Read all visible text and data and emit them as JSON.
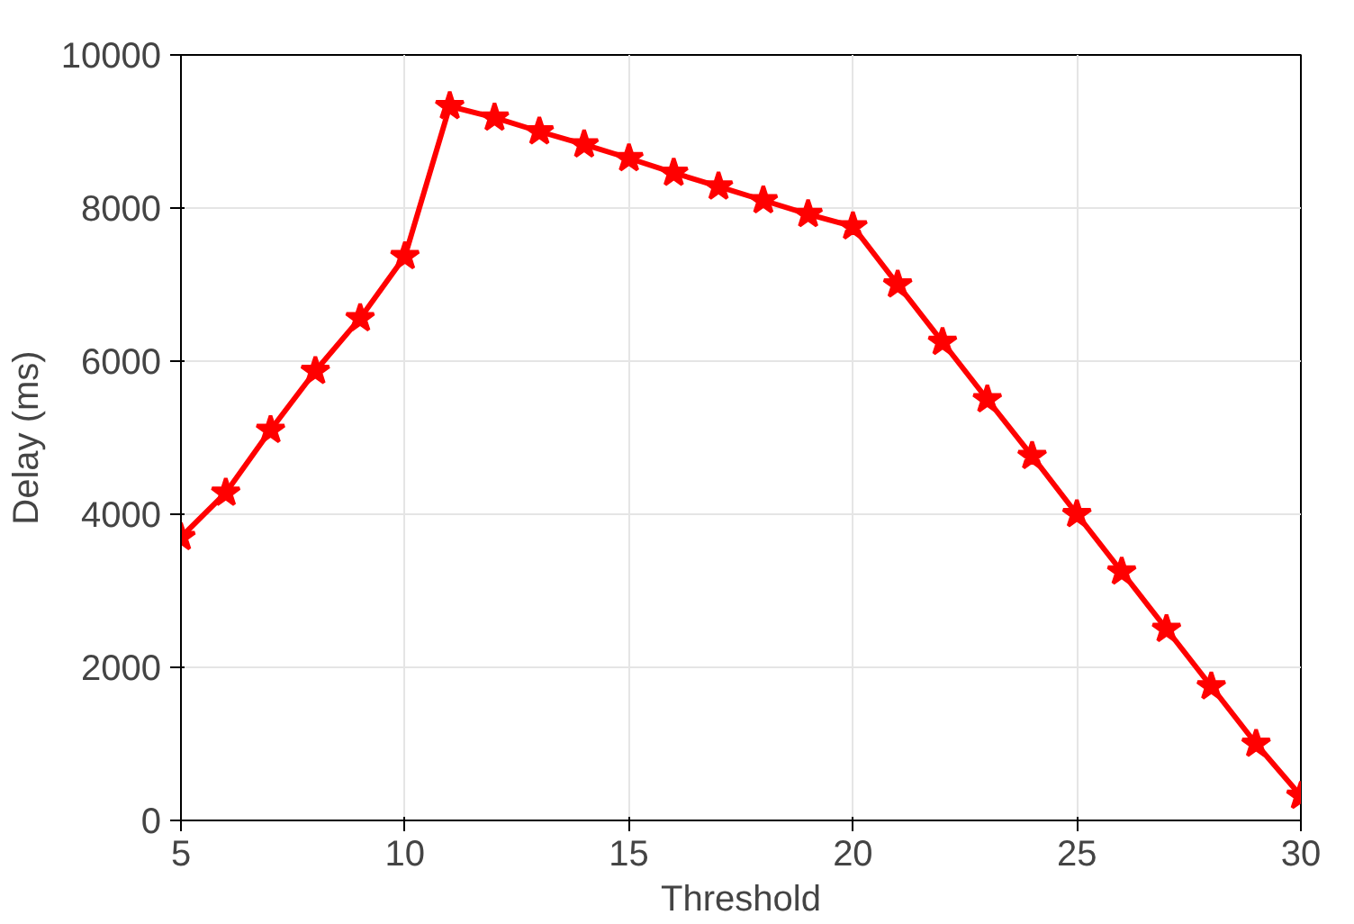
{
  "chart_data": {
    "type": "line",
    "xlabel": "Threshold",
    "ylabel": "Delay (ms)",
    "x": [
      5,
      6,
      7,
      8,
      9,
      10,
      11,
      12,
      13,
      14,
      15,
      16,
      17,
      18,
      19,
      20,
      21,
      22,
      23,
      24,
      25,
      26,
      27,
      28,
      29,
      30
    ],
    "series": [
      {
        "color": "#ff0000",
        "values": [
          3700,
          4280,
          5100,
          5870,
          6560,
          7370,
          9330,
          9180,
          9000,
          8830,
          8650,
          8460,
          8280,
          8100,
          7920,
          7760,
          7000,
          6250,
          5500,
          4760,
          4000,
          3250,
          2500,
          1750,
          1000,
          320
        ]
      }
    ],
    "xlim": [
      5,
      30
    ],
    "ylim": [
      0,
      10000
    ],
    "xticks": [
      5,
      10,
      15,
      20,
      25,
      30
    ],
    "yticks": [
      0,
      2000,
      4000,
      6000,
      8000,
      10000
    ],
    "grid": true,
    "marker": "star",
    "line_style": "solid"
  }
}
